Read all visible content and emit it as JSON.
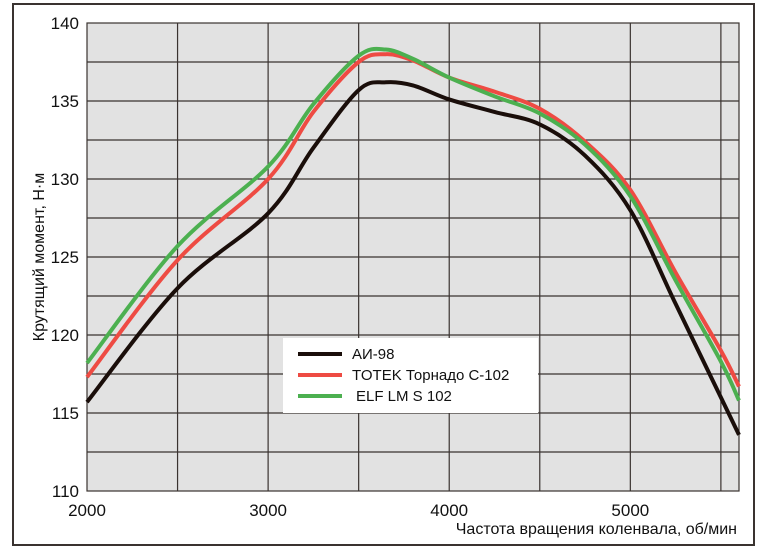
{
  "chart_data": {
    "type": "line",
    "title": "",
    "xlabel": "Частота вращения коленвала, об/мин",
    "ylabel": "Крутящий момент, Н·м",
    "xlim": [
      2000,
      5600
    ],
    "ylim": [
      110,
      140
    ],
    "xticks": [
      "2000",
      "3000",
      "4000",
      "5000"
    ],
    "yticks": [
      "110",
      "115",
      "120",
      "125",
      "130",
      "135",
      "140"
    ],
    "grid": true,
    "legend_position": "center-left",
    "x": [
      2000,
      2500,
      3000,
      3250,
      3500,
      3650,
      3800,
      4000,
      4250,
      4500,
      4750,
      5000,
      5250,
      5500,
      5600
    ],
    "series": [
      {
        "name": "АИ-98",
        "color": "#1a0e0a",
        "values": [
          115.7,
          123.0,
          127.8,
          132.0,
          135.7,
          136.2,
          136.0,
          135.1,
          134.3,
          133.5,
          131.5,
          128.0,
          122.0,
          116.0,
          113.6
        ]
      },
      {
        "name": "TOTEK Торнадо С-102",
        "color": "#ee4b43",
        "values": [
          117.3,
          124.8,
          130.0,
          134.3,
          137.5,
          138.0,
          137.6,
          136.5,
          135.6,
          134.5,
          132.4,
          129.3,
          124.0,
          119.0,
          116.7
        ]
      },
      {
        "name": "ELF LM S 102",
        "color": "#4cb050",
        "values": [
          118.2,
          125.7,
          130.8,
          134.8,
          137.9,
          138.3,
          137.7,
          136.5,
          135.3,
          134.2,
          132.2,
          128.9,
          123.5,
          118.3,
          115.8
        ]
      }
    ]
  }
}
